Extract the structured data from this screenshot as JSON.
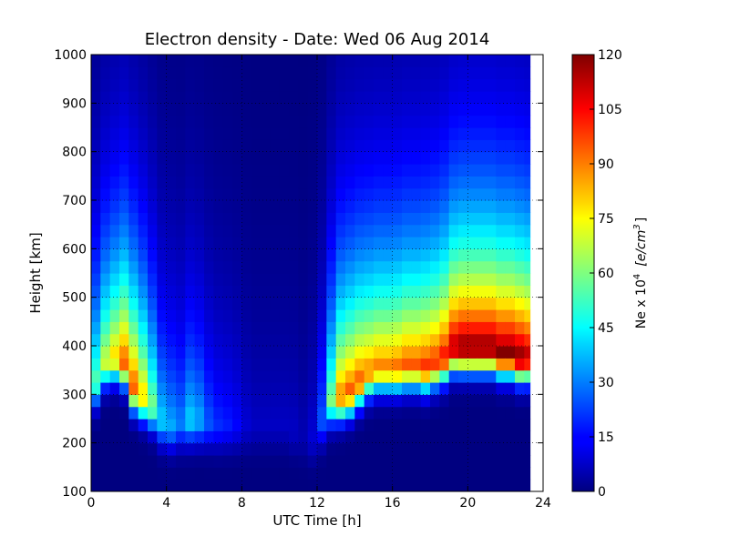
{
  "chart_data": {
    "type": "heatmap",
    "title": "Electron density - Date: Wed 06 Aug 2014",
    "xlabel": "UTC Time [h]",
    "ylabel": "Height [km]",
    "xlim": [
      0,
      24
    ],
    "ylim": [
      100,
      1000
    ],
    "x_ticks": [
      "0",
      "4",
      "8",
      "12",
      "16",
      "20",
      "24"
    ],
    "y_ticks": [
      "100",
      "200",
      "300",
      "400",
      "500",
      "600",
      "700",
      "800",
      "900",
      "1000"
    ],
    "grid": true,
    "colormap": "jet",
    "colorbar": {
      "label_prefix": "Ne x 10",
      "label_exp": "4",
      "label_unit": "[e/cm",
      "label_unit_exp": "3",
      "label_close": "]",
      "range": [
        0,
        120
      ],
      "ticks": [
        "0",
        "15",
        "30",
        "45",
        "60",
        "75",
        "90",
        "105",
        "120"
      ]
    },
    "data_time_range": [
      0,
      23.3
    ],
    "heights": [
      100,
      125,
      150,
      175,
      200,
      225,
      250,
      275,
      300,
      325,
      350,
      375,
      400,
      425,
      450,
      475,
      500,
      525,
      550,
      575,
      600,
      625,
      650,
      675,
      700,
      725,
      750,
      775,
      800,
      825,
      850,
      875,
      900,
      925,
      950,
      975,
      1000
    ],
    "times": [
      0,
      0.5,
      1,
      1.5,
      2,
      2.5,
      3,
      3.5,
      4,
      4.5,
      5,
      5.5,
      6,
      6.5,
      7,
      7.5,
      8,
      8.5,
      9,
      9.5,
      10,
      10.5,
      11,
      11.5,
      12,
      12.5,
      13,
      13.5,
      14,
      14.5,
      15,
      15.5,
      16,
      16.5,
      17,
      17.5,
      18,
      18.5,
      19,
      19.5,
      20,
      20.5,
      21,
      21.5,
      22,
      22.5,
      23
    ],
    "peak_height_km": [
      330,
      370,
      380,
      370,
      320,
      300,
      280,
      250,
      240,
      245,
      250,
      250,
      245,
      240,
      240,
      240,
      240,
      240,
      240,
      240,
      240,
      230,
      220,
      215,
      250,
      290,
      300,
      310,
      330,
      350,
      360,
      360,
      360,
      365,
      365,
      360,
      370,
      380,
      400,
      400,
      400,
      400,
      400,
      390,
      390,
      380,
      380
    ],
    "peak_density": [
      55,
      70,
      80,
      95,
      95,
      80,
      60,
      40,
      35,
      30,
      40,
      35,
      25,
      20,
      18,
      15,
      10,
      8,
      8,
      8,
      8,
      8,
      6,
      10,
      25,
      60,
      90,
      95,
      95,
      90,
      90,
      90,
      92,
      95,
      95,
      100,
      100,
      105,
      115,
      120,
      120,
      120,
      120,
      120,
      120,
      120,
      115
    ]
  }
}
